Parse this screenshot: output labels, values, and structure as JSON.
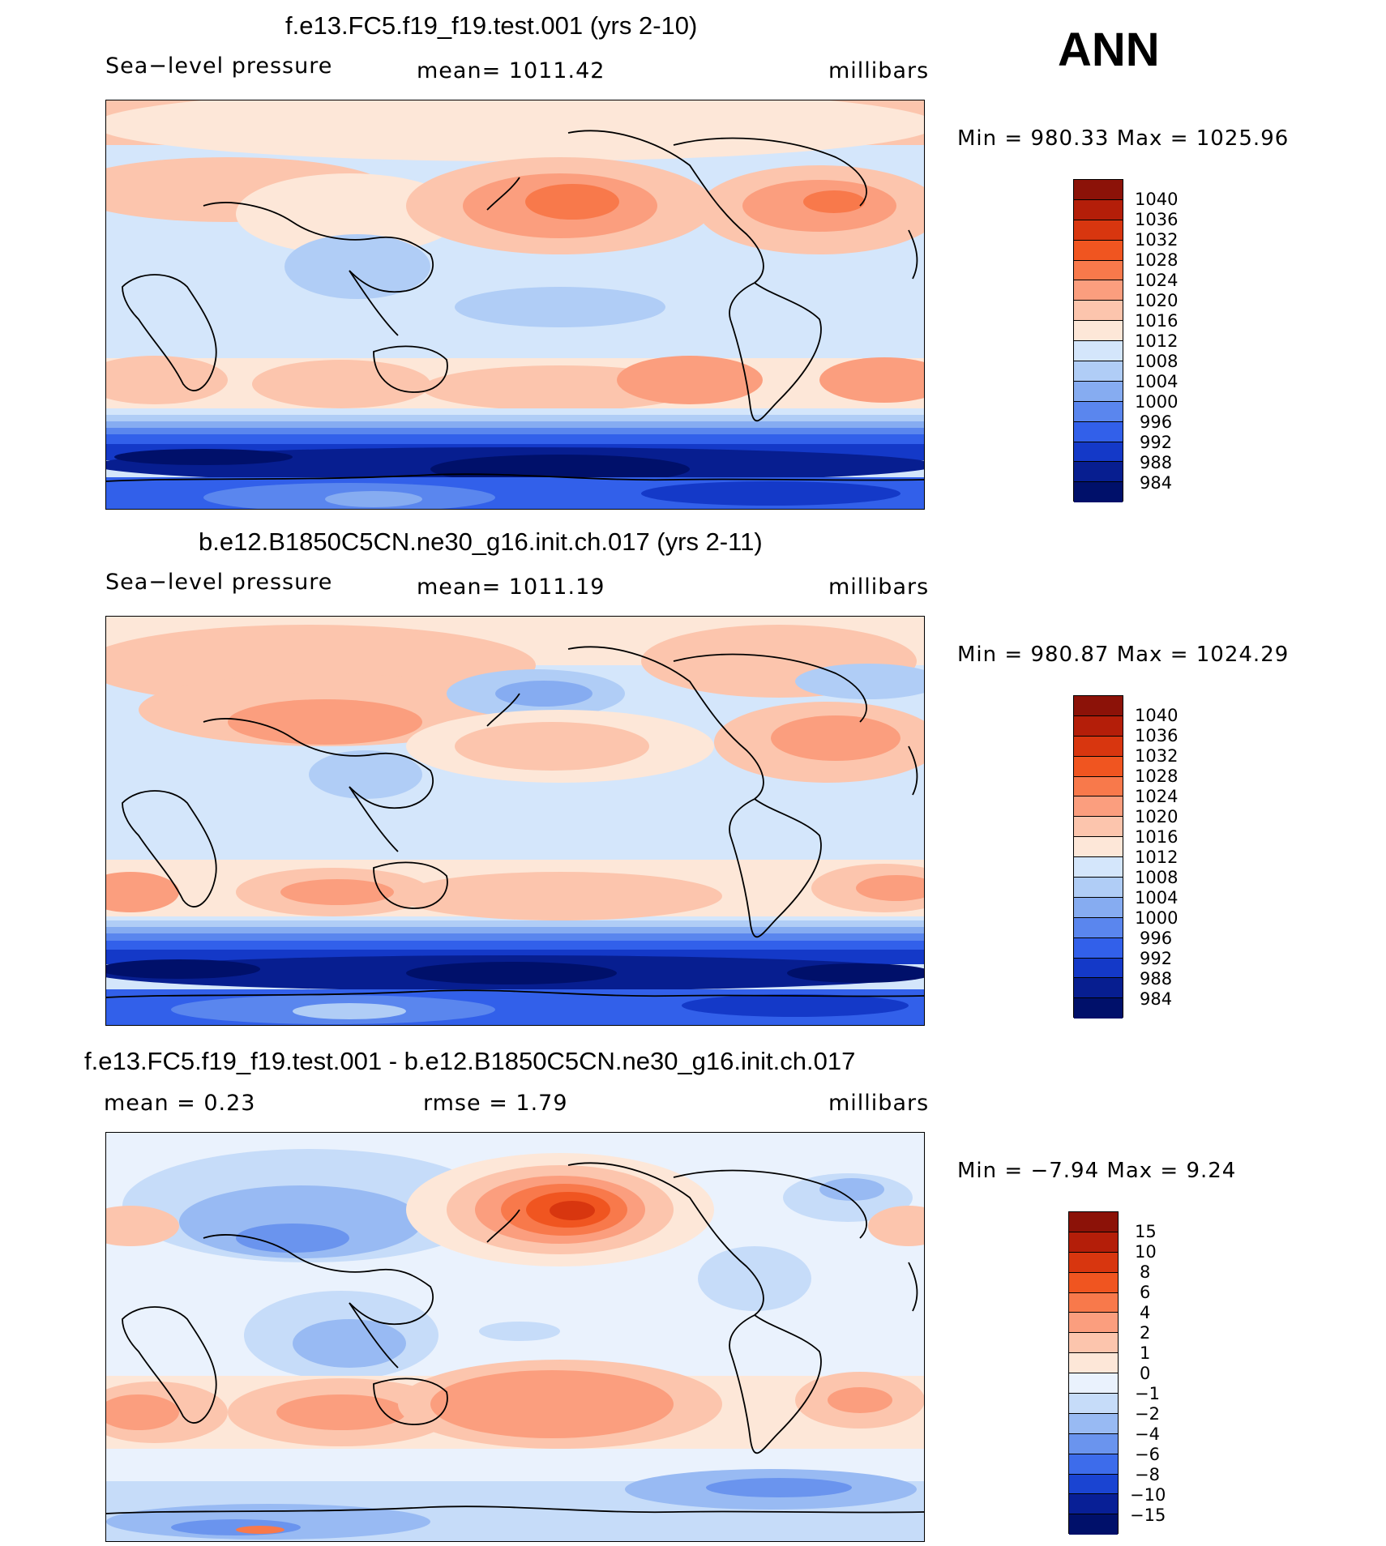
{
  "season": "ANN",
  "panels": [
    {
      "id": "test",
      "title": "f.e13.FC5.f19_f19.test.001 (yrs 2-10)",
      "left_label": "Sea−level pressure",
      "stat_label": "mean=  1011.42",
      "units": "millibars",
      "minmax": "Min  =  980.33  Max  =  1025.96",
      "levels": [
        "1040",
        "1036",
        "1032",
        "1028",
        "1024",
        "1020",
        "1016",
        "1012",
        "1008",
        "1004",
        "1000",
        "996",
        "992",
        "988",
        "984"
      ],
      "colors": [
        "#8c1208",
        "#b41e09",
        "#d8360f",
        "#f05520",
        "#f8794b",
        "#fb9e7e",
        "#fcc5ad",
        "#fde7d8",
        "#d4e6fb",
        "#b0cdf6",
        "#86acf1",
        "#5a86ee",
        "#3260ea",
        "#1439c8",
        "#071e90",
        "#00106a"
      ]
    },
    {
      "id": "control",
      "title": "b.e12.B1850C5CN.ne30_g16.init.ch.017 (yrs 2-11)",
      "left_label": "Sea−level pressure",
      "stat_label": "mean=  1011.19",
      "units": "millibars",
      "minmax": "Min  =  980.87  Max  =  1024.29",
      "levels": [
        "1040",
        "1036",
        "1032",
        "1028",
        "1024",
        "1020",
        "1016",
        "1012",
        "1008",
        "1004",
        "1000",
        "996",
        "992",
        "988",
        "984"
      ],
      "colors": [
        "#8c1208",
        "#b41e09",
        "#d8360f",
        "#f05520",
        "#f8794b",
        "#fb9e7e",
        "#fcc5ad",
        "#fde7d8",
        "#d4e6fb",
        "#b0cdf6",
        "#86acf1",
        "#5a86ee",
        "#3260ea",
        "#1439c8",
        "#071e90",
        "#00106a"
      ]
    },
    {
      "id": "difference",
      "title": "f.e13.FC5.f19_f19.test.001 - b.e12.B1850C5CN.ne30_g16.init.ch.017",
      "left_label": "mean  =      0.23",
      "stat_label": "rmse  =      1.79",
      "units": "millibars",
      "minmax": "Min  =    −7.94  Max  =      9.24",
      "levels": [
        "15",
        "10",
        "8",
        "6",
        "4",
        "2",
        "1",
        "0",
        "−1",
        "−2",
        "−4",
        "−6",
        "−8",
        "−10",
        "−15"
      ],
      "colors": [
        "#8c1208",
        "#b41e09",
        "#d8360f",
        "#f05520",
        "#f8794b",
        "#fb9e7e",
        "#fcc5ad",
        "#fde7d8",
        "#eaf2fd",
        "#c6dcf9",
        "#98baf3",
        "#6a94ee",
        "#3d6ceb",
        "#1a44d2",
        "#081f96",
        "#00106a"
      ]
    }
  ]
}
